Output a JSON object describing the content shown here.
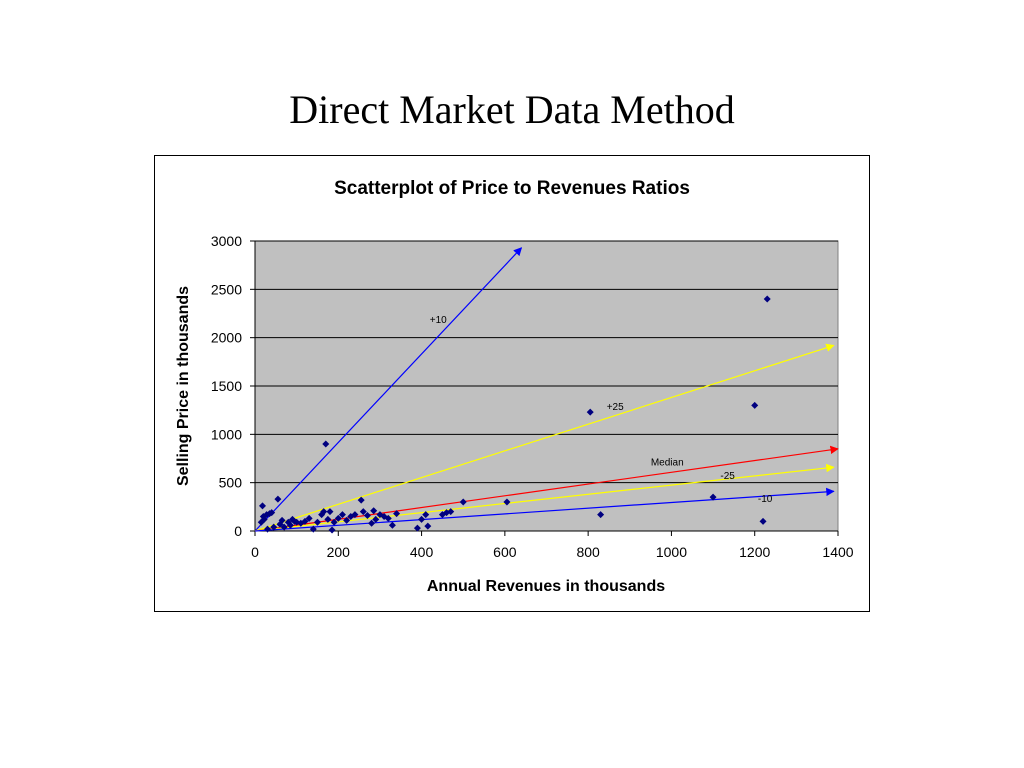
{
  "slide": {
    "title": "Direct Market Data Method"
  },
  "chart_data": {
    "type": "scatter",
    "title": "Scatterplot of Price to Revenues Ratios",
    "xlabel": "Annual Revenues in thousands",
    "ylabel": "Selling Price in thousands",
    "xlim": [
      0,
      1400
    ],
    "ylim": [
      0,
      3000
    ],
    "x_ticks": [
      0,
      200,
      400,
      600,
      800,
      1000,
      1200,
      1400
    ],
    "y_ticks": [
      0,
      500,
      1000,
      1500,
      2000,
      2500,
      3000
    ],
    "grid": "horizontal",
    "background": "#c0c0c0",
    "point_color": "#000080",
    "points": [
      [
        15,
        90
      ],
      [
        18,
        260
      ],
      [
        20,
        150
      ],
      [
        22,
        120
      ],
      [
        28,
        170
      ],
      [
        30,
        20
      ],
      [
        35,
        180
      ],
      [
        40,
        190
      ],
      [
        45,
        40
      ],
      [
        55,
        330
      ],
      [
        60,
        70
      ],
      [
        65,
        110
      ],
      [
        70,
        40
      ],
      [
        80,
        90
      ],
      [
        85,
        60
      ],
      [
        90,
        120
      ],
      [
        95,
        100
      ],
      [
        100,
        90
      ],
      [
        110,
        80
      ],
      [
        120,
        100
      ],
      [
        130,
        130
      ],
      [
        140,
        20
      ],
      [
        150,
        90
      ],
      [
        160,
        170
      ],
      [
        165,
        200
      ],
      [
        170,
        900
      ],
      [
        175,
        120
      ],
      [
        180,
        200
      ],
      [
        185,
        10
      ],
      [
        190,
        90
      ],
      [
        200,
        130
      ],
      [
        210,
        170
      ],
      [
        220,
        110
      ],
      [
        230,
        150
      ],
      [
        240,
        170
      ],
      [
        255,
        320
      ],
      [
        260,
        200
      ],
      [
        270,
        160
      ],
      [
        280,
        80
      ],
      [
        285,
        210
      ],
      [
        290,
        120
      ],
      [
        300,
        170
      ],
      [
        310,
        150
      ],
      [
        320,
        130
      ],
      [
        330,
        60
      ],
      [
        340,
        180
      ],
      [
        390,
        30
      ],
      [
        400,
        120
      ],
      [
        410,
        170
      ],
      [
        415,
        50
      ],
      [
        450,
        170
      ],
      [
        460,
        190
      ],
      [
        470,
        200
      ],
      [
        500,
        300
      ],
      [
        605,
        300
      ],
      [
        805,
        1230
      ],
      [
        830,
        170
      ],
      [
        1100,
        350
      ],
      [
        1200,
        1300
      ],
      [
        1220,
        100
      ],
      [
        1230,
        2400
      ]
    ],
    "reference_lines": [
      {
        "label": "+10",
        "color": "#0000ff",
        "from": [
          0,
          0
        ],
        "to": [
          640,
          2930
        ],
        "label_at": [
          440,
          2150
        ]
      },
      {
        "label": "+25",
        "color": "#ffff00",
        "from": [
          0,
          0
        ],
        "to": [
          1390,
          1920
        ],
        "label_at": [
          865,
          1250
        ]
      },
      {
        "label": "Median",
        "color": "#ff0000",
        "from": [
          0,
          0
        ],
        "to": [
          1400,
          850
        ],
        "label_at": [
          990,
          680
        ]
      },
      {
        "label": "-25",
        "color": "#ffff00",
        "from": [
          0,
          0
        ],
        "to": [
          1390,
          660
        ],
        "label_at": [
          1135,
          540
        ]
      },
      {
        "label": "-10",
        "color": "#0000ff",
        "from": [
          0,
          0
        ],
        "to": [
          1390,
          410
        ],
        "label_at": [
          1225,
          300
        ]
      }
    ]
  }
}
